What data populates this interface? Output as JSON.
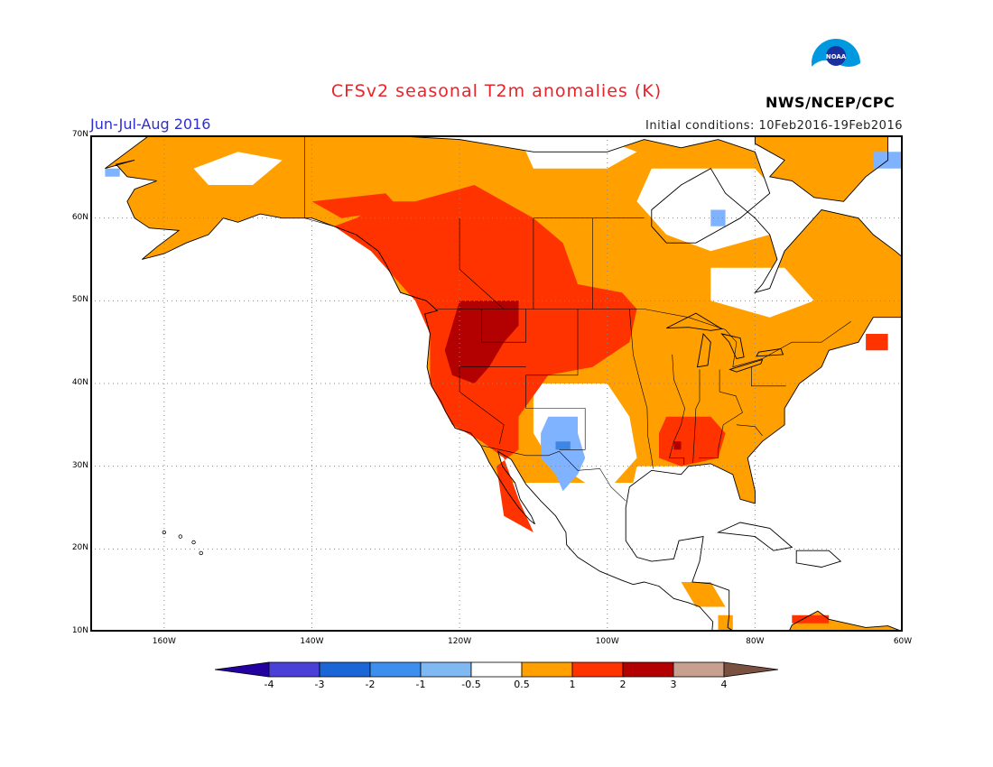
{
  "title": "CFSv2 seasonal T2m anomalies (K)",
  "period": "Jun-Jul-Aug 2016",
  "initial_conditions": "Initial conditions: 10Feb2016-19Feb2016",
  "agency": "NWS/NCEP/CPC",
  "logo_text": "NOAA",
  "colors": {
    "title": "#e8242a",
    "period": "#2f2fd0",
    "land_outline": "#000000",
    "grid": "#888888"
  },
  "map": {
    "lon_range": [
      -170,
      -60
    ],
    "lat_range": [
      10,
      70
    ],
    "lat_ticks": [
      {
        "value": 70,
        "label": "70N"
      },
      {
        "value": 60,
        "label": "60N"
      },
      {
        "value": 50,
        "label": "50N"
      },
      {
        "value": 40,
        "label": "40N"
      },
      {
        "value": 30,
        "label": "30N"
      },
      {
        "value": 20,
        "label": "20N"
      },
      {
        "value": 10,
        "label": "10N"
      }
    ],
    "lon_ticks": [
      {
        "value": -160,
        "label": "160W"
      },
      {
        "value": -140,
        "label": "140W"
      },
      {
        "value": -120,
        "label": "120W"
      },
      {
        "value": -100,
        "label": "100W"
      },
      {
        "value": -80,
        "label": "80W"
      },
      {
        "value": -60,
        "label": "60W"
      }
    ]
  },
  "anomaly_regions": [
    {
      "level": "1-2",
      "color": "#ff3300",
      "polygon": [
        [
          -126,
          62
        ],
        [
          -118,
          64
        ],
        [
          -110,
          60
        ],
        [
          -106,
          57
        ],
        [
          -104,
          52
        ],
        [
          -98,
          51
        ],
        [
          -96,
          49
        ],
        [
          -97,
          45
        ],
        [
          -102,
          42
        ],
        [
          -108,
          41
        ],
        [
          -112,
          36
        ],
        [
          -112,
          32
        ],
        [
          -115,
          30
        ],
        [
          -114,
          24
        ],
        [
          -110,
          22
        ],
        [
          -112,
          26
        ],
        [
          -114,
          31
        ],
        [
          -117,
          33
        ],
        [
          -121,
          35
        ],
        [
          -124,
          40
        ],
        [
          -124,
          46
        ],
        [
          -126,
          50
        ],
        [
          -132,
          56
        ],
        [
          -137,
          59
        ],
        [
          -134,
          60
        ],
        [
          -130,
          62
        ]
      ]
    },
    {
      "level": "2-3",
      "color": "#b30000",
      "polygon": [
        [
          -120,
          50
        ],
        [
          -112,
          50
        ],
        [
          -112,
          47
        ],
        [
          -114,
          45
        ],
        [
          -116,
          42
        ],
        [
          -118,
          40
        ],
        [
          -121,
          41
        ],
        [
          -122,
          44
        ],
        [
          -121,
          47
        ]
      ]
    },
    {
      "level": "1-2",
      "color": "#ff3300",
      "polygon": [
        [
          -92,
          36
        ],
        [
          -86,
          36
        ],
        [
          -84,
          34
        ],
        [
          -85,
          31
        ],
        [
          -90,
          30
        ],
        [
          -93,
          31
        ],
        [
          -93,
          34
        ]
      ]
    },
    {
      "level": "2-3",
      "color": "#b30000",
      "polygon": [
        [
          -91,
          33
        ],
        [
          -90,
          33
        ],
        [
          -90,
          32
        ],
        [
          -91,
          32
        ]
      ]
    },
    {
      "level": "1-2",
      "color": "#ff3300",
      "polygon": [
        [
          -140,
          62
        ],
        [
          -130,
          63
        ],
        [
          -128,
          61
        ],
        [
          -136,
          60
        ]
      ]
    },
    {
      "level": "1-2",
      "color": "#ff3300",
      "polygon": [
        [
          -65,
          46
        ],
        [
          -62,
          46
        ],
        [
          -62,
          44
        ],
        [
          -65,
          44
        ]
      ]
    },
    {
      "level": "1-2",
      "color": "#ff3300",
      "polygon": [
        [
          -75,
          12
        ],
        [
          -70,
          12
        ],
        [
          -70,
          11
        ],
        [
          -75,
          11
        ]
      ]
    },
    {
      "level": "-1--0.5",
      "color": "#80b3ff",
      "polygon": [
        [
          -108,
          36
        ],
        [
          -104,
          36
        ],
        [
          -104,
          34
        ],
        [
          -103,
          31
        ],
        [
          -104,
          29
        ],
        [
          -106,
          27
        ],
        [
          -107,
          29
        ],
        [
          -109,
          31
        ],
        [
          -109,
          34
        ]
      ]
    },
    {
      "level": "-2--1",
      "color": "#3d86e6",
      "polygon": [
        [
          -107,
          33
        ],
        [
          -105,
          33
        ],
        [
          -105,
          32
        ],
        [
          -107,
          32
        ]
      ]
    },
    {
      "level": "-1--0.5",
      "color": "#80b3ff",
      "polygon": [
        [
          -86,
          61
        ],
        [
          -84,
          61
        ],
        [
          -84,
          59
        ],
        [
          -86,
          59
        ]
      ]
    },
    {
      "level": "-1--0.5",
      "color": "#80b3ff",
      "polygon": [
        [
          -168,
          66
        ],
        [
          -166,
          66
        ],
        [
          -166,
          65
        ],
        [
          -168,
          65
        ]
      ]
    },
    {
      "level": "-1--0.5",
      "color": "#80b3ff",
      "polygon": [
        [
          -64,
          68
        ],
        [
          -60,
          68
        ],
        [
          -60,
          66
        ],
        [
          -64,
          66
        ]
      ]
    }
  ],
  "warm_base_region": {
    "level": "0.5-1",
    "color": "#ffa000"
  },
  "near_normal_regions": [
    {
      "level": "-0.5-0.5",
      "color": "#ffffff",
      "polygon": [
        [
          -156,
          66
        ],
        [
          -150,
          68
        ],
        [
          -144,
          67
        ],
        [
          -148,
          64
        ],
        [
          -154,
          64
        ]
      ]
    },
    {
      "level": "-0.5-0.5",
      "color": "#ffffff",
      "polygon": [
        [
          -112,
          70
        ],
        [
          -102,
          70
        ],
        [
          -96,
          68
        ],
        [
          -100,
          66
        ],
        [
          -110,
          66
        ]
      ]
    },
    {
      "level": "-0.5-0.5",
      "color": "#ffffff",
      "polygon": [
        [
          -94,
          66
        ],
        [
          -80,
          66
        ],
        [
          -76,
          62
        ],
        [
          -78,
          58
        ],
        [
          -86,
          56
        ],
        [
          -92,
          58
        ],
        [
          -96,
          62
        ]
      ]
    },
    {
      "level": "-0.5-0.5",
      "color": "#ffffff",
      "polygon": [
        [
          -86,
          54
        ],
        [
          -76,
          54
        ],
        [
          -72,
          50
        ],
        [
          -78,
          48
        ],
        [
          -86,
          50
        ]
      ]
    },
    {
      "level": "-0.5-0.5",
      "color": "#ffffff",
      "polygon": [
        [
          -110,
          40
        ],
        [
          -100,
          40
        ],
        [
          -97,
          36
        ],
        [
          -96,
          31
        ],
        [
          -99,
          28
        ],
        [
          -103,
          28
        ],
        [
          -108,
          31
        ],
        [
          -110,
          34
        ]
      ]
    },
    {
      "level": "-0.5-0.5",
      "color": "#ffffff",
      "polygon": [
        [
          -96,
          30
        ],
        [
          -88,
          30
        ],
        [
          -84,
          28
        ],
        [
          -84,
          22
        ],
        [
          -90,
          18
        ],
        [
          -96,
          18
        ],
        [
          -98,
          22
        ]
      ]
    }
  ],
  "colorbar": {
    "labels": [
      "-4",
      "-3",
      "-2",
      "-1",
      "-0.5",
      "0.5",
      "1",
      "2",
      "3",
      "4"
    ],
    "colors": [
      "#2400a0",
      "#4a3fd6",
      "#1a66d6",
      "#3d8fef",
      "#80b8f2",
      "#ffffff",
      "#ffa000",
      "#ff3300",
      "#b30000",
      "#c8a090",
      "#7a5040"
    ]
  }
}
